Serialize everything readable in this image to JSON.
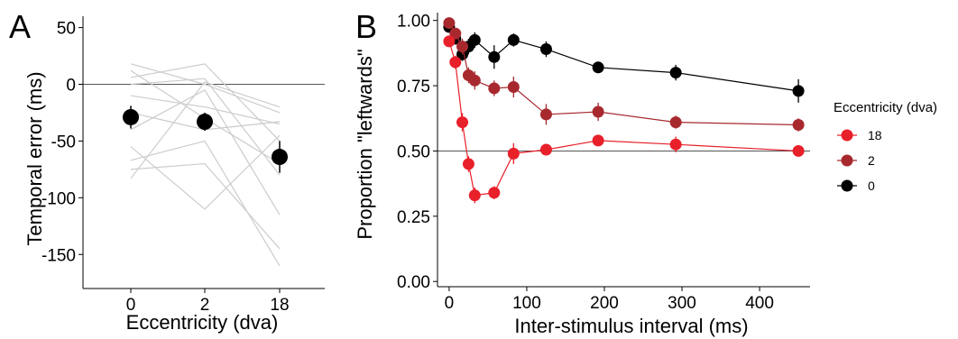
{
  "chart_data": [
    {
      "panel_label": "A",
      "type": "scatter",
      "xlabel": "Eccentricity (dva)",
      "ylabel": "Temporal error (ms)",
      "categories": [
        "0",
        "2",
        "18"
      ],
      "ylim": [
        -180,
        60
      ],
      "yticks": [
        50,
        0,
        -50,
        -100,
        -150
      ],
      "ytick_labels": [
        "50",
        "0",
        "-50",
        "-100",
        "-150"
      ],
      "reference_line": 0,
      "means": [
        -29,
        -33,
        -64
      ],
      "errors": [
        10,
        8,
        14
      ],
      "individual_lines": [
        [
          18,
          0,
          -25
        ],
        [
          12,
          -30,
          -70
        ],
        [
          6,
          18,
          -50
        ],
        [
          0,
          5,
          -80
        ],
        [
          -10,
          -20,
          -35
        ],
        [
          -25,
          -40,
          -33
        ],
        [
          -40,
          -5,
          -115
        ],
        [
          -55,
          -110,
          -45
        ],
        [
          -67,
          -50,
          -160
        ],
        [
          -75,
          -70,
          -145
        ],
        [
          -83,
          2,
          -20
        ]
      ],
      "colors": {
        "mean": "#000000",
        "individual": "#cccccc",
        "reference": "#555555"
      }
    },
    {
      "panel_label": "B",
      "type": "line",
      "xlabel": "Inter-stimulus interval (ms)",
      "ylabel": "Proportion \"leftwards\"",
      "xlim": [
        -15,
        465
      ],
      "ylim": [
        -0.02,
        1.03
      ],
      "xticks": [
        0,
        100,
        200,
        300,
        400
      ],
      "xtick_labels": [
        "0",
        "100",
        "200",
        "300",
        "400"
      ],
      "yticks": [
        0,
        0.25,
        0.5,
        0.75,
        1.0
      ],
      "ytick_labels": [
        "0.00",
        "0.25",
        "0.50",
        "0.75",
        "1.00"
      ],
      "reference_line": 0.5,
      "x": [
        0,
        8,
        17,
        25,
        33,
        58,
        83,
        125,
        192,
        292,
        450
      ],
      "series": [
        {
          "name": "18",
          "color": "#e8202a",
          "values": [
            0.92,
            0.84,
            0.61,
            0.45,
            0.33,
            0.34,
            0.49,
            0.505,
            0.54,
            0.525,
            0.5
          ],
          "errors": [
            0.02,
            0.025,
            0.035,
            0.03,
            0.03,
            0.025,
            0.04,
            0.02,
            0.02,
            0.03,
            0.015
          ]
        },
        {
          "name": "2",
          "color": "#a7292e",
          "values": [
            0.99,
            0.95,
            0.9,
            0.79,
            0.77,
            0.74,
            0.745,
            0.64,
            0.65,
            0.61,
            0.6
          ],
          "errors": [
            0.01,
            0.02,
            0.03,
            0.03,
            0.035,
            0.03,
            0.04,
            0.04,
            0.035,
            0.025,
            0.025
          ]
        },
        {
          "name": "0",
          "color": "#000000",
          "values": [
            0.975,
            0.93,
            0.87,
            0.9,
            0.925,
            0.86,
            0.925,
            0.89,
            0.82,
            0.8,
            0.73
          ],
          "errors": [
            0.015,
            0.02,
            0.025,
            0.03,
            0.03,
            0.045,
            0.025,
            0.03,
            0.02,
            0.03,
            0.045
          ]
        }
      ],
      "legend": {
        "title": "Eccentricity (dva)",
        "position": "right",
        "entries": [
          "18",
          "2",
          "0"
        ]
      }
    }
  ]
}
